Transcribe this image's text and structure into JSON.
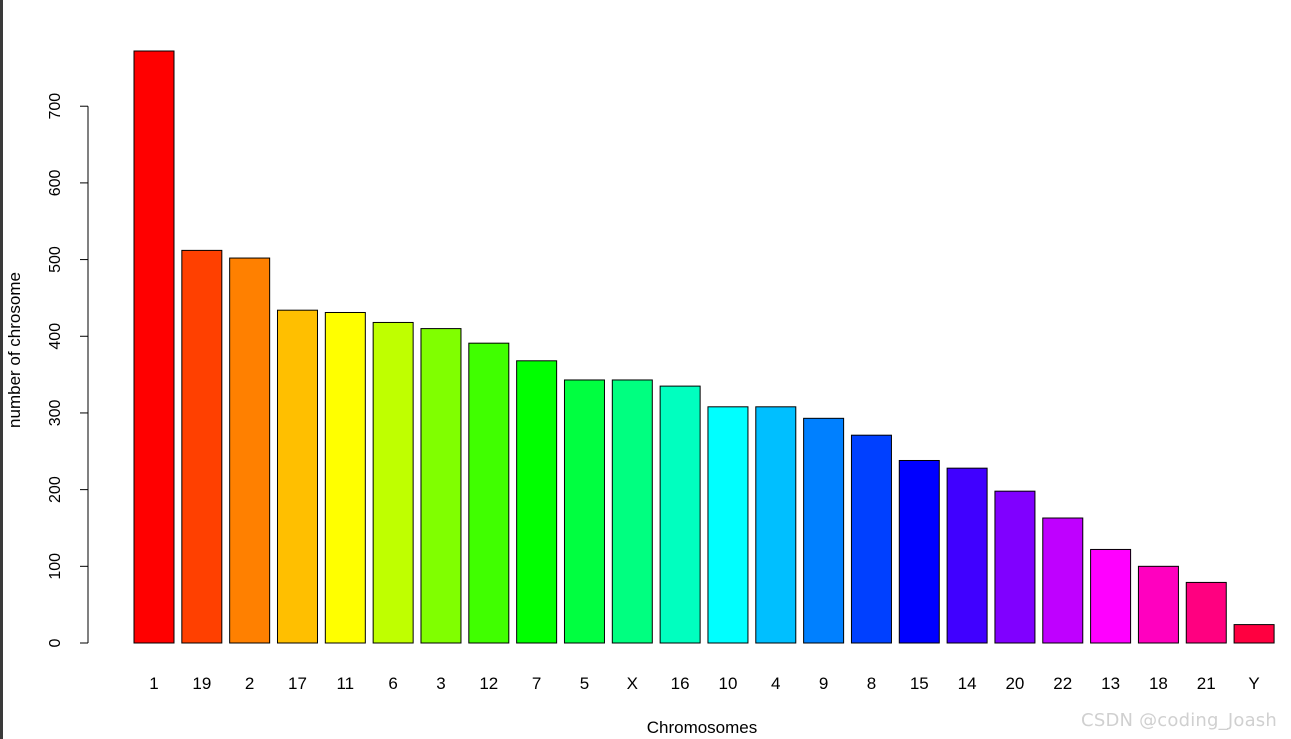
{
  "chart_data": {
    "type": "bar",
    "title": "",
    "xlabel": "Chromosomes",
    "ylabel": "number of chrosome",
    "categories": [
      "1",
      "19",
      "2",
      "17",
      "11",
      "6",
      "3",
      "12",
      "7",
      "5",
      "X",
      "16",
      "10",
      "4",
      "9",
      "8",
      "15",
      "14",
      "20",
      "22",
      "13",
      "18",
      "21",
      "Y"
    ],
    "values": [
      772,
      512,
      502,
      434,
      431,
      418,
      410,
      391,
      368,
      343,
      343,
      335,
      308,
      308,
      293,
      271,
      238,
      228,
      198,
      163,
      122,
      100,
      79,
      24
    ],
    "colors": [
      "#FF0000",
      "#FF4000",
      "#FF8000",
      "#FFBF00",
      "#FFFF00",
      "#BFFF00",
      "#80FF00",
      "#40FF00",
      "#00FF00",
      "#00FF40",
      "#00FF80",
      "#00FFBF",
      "#00FFFF",
      "#00BFFF",
      "#0080FF",
      "#0040FF",
      "#0000FF",
      "#4000FF",
      "#8000FF",
      "#BF00FF",
      "#FF00FF",
      "#FF00BF",
      "#FF0080",
      "#FF0040"
    ],
    "yticks": [
      0,
      100,
      200,
      300,
      400,
      500,
      600,
      700
    ],
    "ylim": [
      0,
      772
    ],
    "grid": false,
    "legend": "none",
    "bar_border_color": "#000000"
  },
  "watermark": "CSDN @coding_Joash"
}
